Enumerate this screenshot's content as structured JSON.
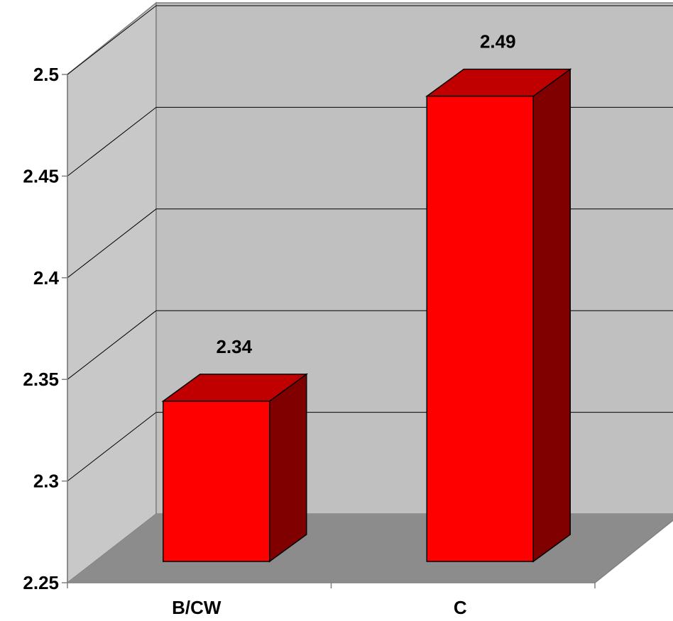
{
  "chart_data": {
    "type": "bar",
    "style": "3d-column",
    "categories": [
      "B/CW",
      "C"
    ],
    "values": [
      2.34,
      2.49
    ],
    "data_labels": [
      "2.34",
      "2.49"
    ],
    "y_ticks": [
      "2.25",
      "2.3",
      "2.35",
      "2.4",
      "2.45",
      "2.5"
    ],
    "ylim": [
      2.25,
      2.5
    ],
    "grid": true,
    "legend": "none",
    "colors": {
      "bar_front": "#FF0000",
      "bar_top": "#C00000",
      "bar_side": "#800000",
      "back_wall": "#C0C0C0",
      "side_wall": "#C8C8C8",
      "floor": "#8C8C8C",
      "gridline": "#000000"
    }
  }
}
